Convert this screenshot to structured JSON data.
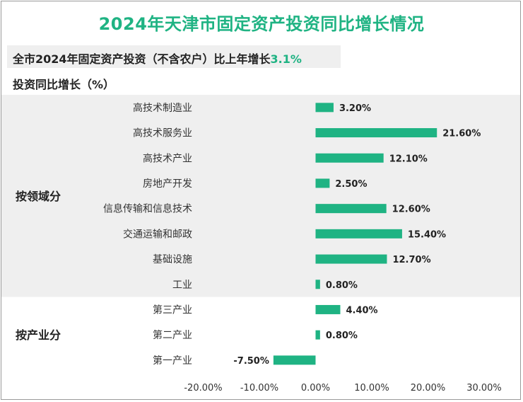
{
  "title": "2024年天津市固定资产投资同比增长情况",
  "subtitle": {
    "text": "全市2024年固定资产投资（不含农户）比上年增长",
    "highlight": "3.1%"
  },
  "colors": {
    "accent": "#1fb383",
    "bar": "#1fb383",
    "band": "#efefef"
  },
  "chart_data": {
    "type": "bar",
    "orientation": "horizontal",
    "title": "2024年天津市固定资产投资同比增长情况",
    "ylabel": "投资同比增长（%）",
    "xlim": [
      -20,
      30
    ],
    "xticks": [
      -20,
      -10,
      0,
      10,
      20,
      30
    ],
    "xtick_labels": [
      "-20.00%",
      "-10.00%",
      "0.00%",
      "10.00%",
      "20.00%",
      "30.00%"
    ],
    "groups": [
      {
        "name": "按领域分",
        "shaded": true,
        "categories": [
          "高技术制造业",
          "高技术服务业",
          "高技术产业",
          "房地产开发",
          "信息传输和信息技术",
          "交通运输和邮政",
          "基础设施",
          "工业"
        ],
        "values": [
          3.2,
          21.6,
          12.1,
          2.5,
          12.6,
          15.4,
          12.7,
          0.8
        ],
        "labels": [
          "3.20%",
          "21.60%",
          "12.10%",
          "2.50%",
          "12.60%",
          "15.40%",
          "12.70%",
          "0.80%"
        ]
      },
      {
        "name": "按产业分",
        "shaded": false,
        "categories": [
          "第三产业",
          "第二产业",
          "第一产业"
        ],
        "values": [
          4.4,
          0.8,
          -7.5
        ],
        "labels": [
          "4.40%",
          "0.80%",
          "-7.50%"
        ]
      }
    ]
  }
}
